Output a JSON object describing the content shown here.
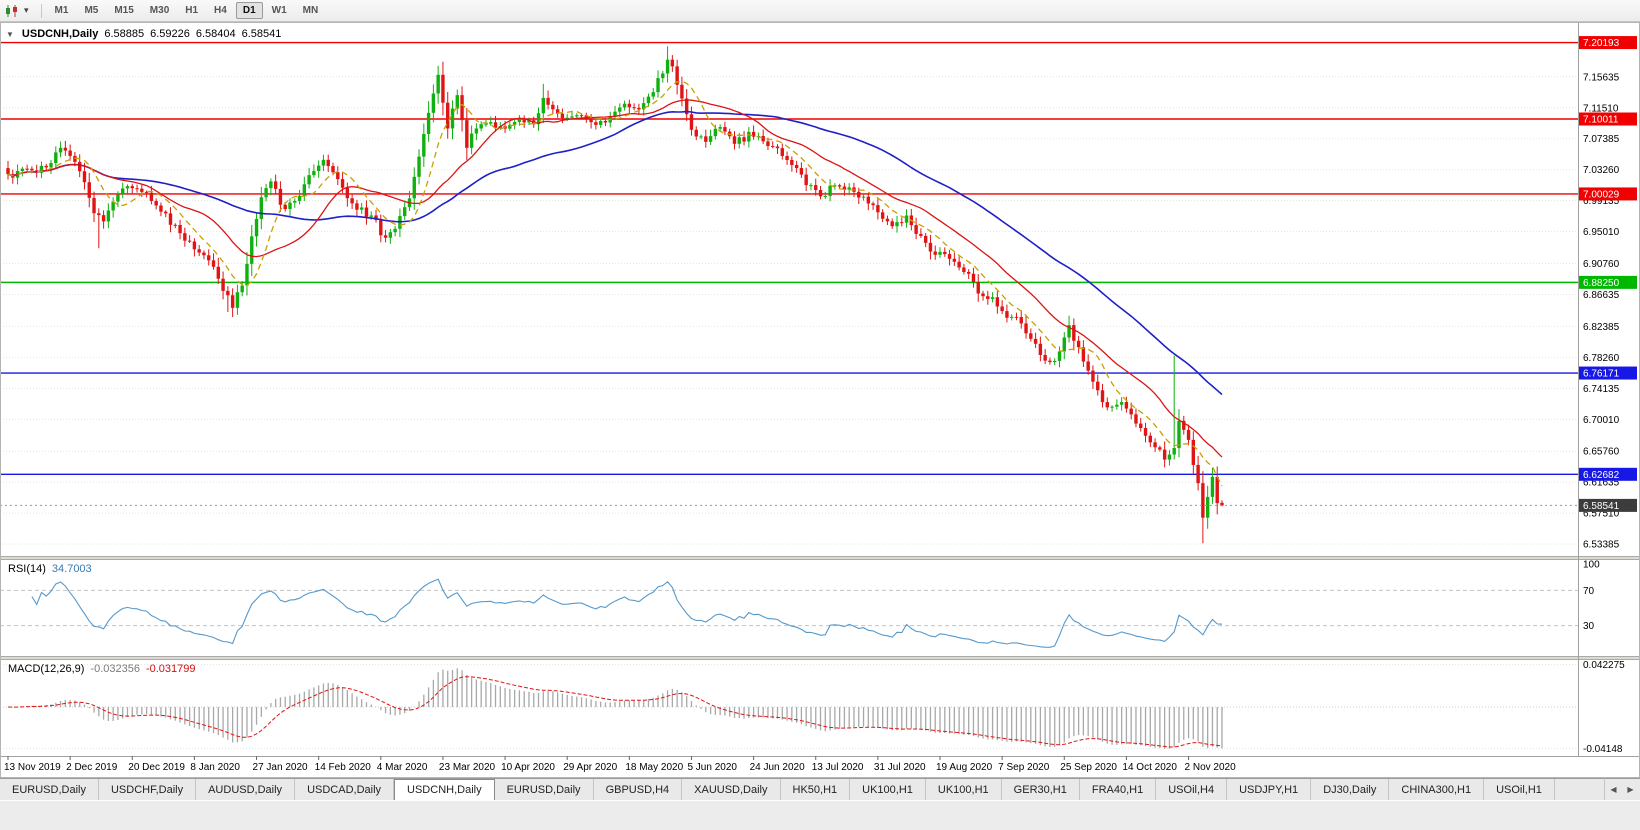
{
  "colors": {
    "up": "#10b010",
    "down": "#e01414",
    "ma_fast": "#c8a000",
    "ma_mid": "#dc1414",
    "ma_slow": "#2020c8",
    "rsi_line": "#5599cc",
    "macd_hist": "#a8a8a8",
    "macd_signal": "#e01414",
    "grid": "#e4e4e4",
    "level_dash": "#c4c4c4",
    "hline_red": "#f00000",
    "hline_green": "#00b800",
    "hline_blue": "#1818e6",
    "current_price_badge": "#3c3c3c",
    "axis_text": "#000000",
    "chart_bg": "#ffffff"
  },
  "icons": {
    "chart_type": "candlestick-chart-icon",
    "caret_down": "▾",
    "one_click_caret": "▼",
    "tab_scroll_left": "◀",
    "tab_scroll_right": "▶"
  },
  "toolbar": {
    "timeframes": [
      "M1",
      "M5",
      "M15",
      "M30",
      "H1",
      "H4",
      "D1",
      "W1",
      "MN"
    ],
    "active_timeframe": "D1"
  },
  "chart": {
    "symbol_title": "USDCNH,Daily",
    "ohlc": {
      "open": "6.58885",
      "high": "6.59226",
      "low": "6.58404",
      "close": "6.58541"
    },
    "price_axis_labels": [
      "7.15635",
      "7.11510",
      "7.07385",
      "7.03260",
      "6.99135",
      "6.95010",
      "6.90760",
      "6.86635",
      "6.82385",
      "6.78260",
      "6.74135",
      "6.70010",
      "6.65760",
      "6.61635",
      "6.57510",
      "6.53385"
    ],
    "hlines": [
      {
        "label": "7.20193",
        "value": 7.20193,
        "color": "red"
      },
      {
        "label": "7.10011",
        "value": 7.10011,
        "color": "red"
      },
      {
        "label": "7.00029",
        "value": 7.00029,
        "color": "red"
      },
      {
        "label": "6.88250",
        "value": 6.8825,
        "color": "green"
      },
      {
        "label": "6.76171",
        "value": 6.76171,
        "color": "blue"
      },
      {
        "label": "6.62682",
        "value": 6.62682,
        "color": "blue"
      }
    ],
    "current_price": {
      "label": "6.58541",
      "value": 6.58541
    },
    "dates": [
      "13 Nov 2019",
      "2 Dec 2019",
      "20 Dec 2019",
      "8 Jan 2020",
      "27 Jan 2020",
      "14 Feb 2020",
      "4 Mar 2020",
      "23 Mar 2020",
      "10 Apr 2020",
      "29 Apr 2020",
      "18 May 2020",
      "5 Jun 2020",
      "24 Jun 2020",
      "13 Jul 2020",
      "31 Jul 2020",
      "19 Aug 2020",
      "7 Sep 2020",
      "25 Sep 2020",
      "14 Oct 2020",
      "2 Nov 2020"
    ]
  },
  "chart_data": {
    "type": "candlestick",
    "symbol": "USDCNH",
    "timeframe": "Daily",
    "candle_count": 255,
    "price_range": {
      "top": 7.228,
      "bottom": 6.518
    },
    "last_candle": {
      "o": 6.58885,
      "h": 6.59226,
      "l": 6.58404,
      "c": 6.58541
    },
    "close_keypoints": [
      [
        0,
        7.022
      ],
      [
        3,
        7.036
      ],
      [
        6,
        7.03
      ],
      [
        9,
        7.046
      ],
      [
        12,
        7.062
      ],
      [
        14,
        7.048
      ],
      [
        16,
        7.02
      ],
      [
        18,
        6.978
      ],
      [
        20,
        6.966
      ],
      [
        23,
        7.004
      ],
      [
        26,
        7.012
      ],
      [
        30,
        6.992
      ],
      [
        34,
        6.962
      ],
      [
        38,
        6.934
      ],
      [
        42,
        6.912
      ],
      [
        45,
        6.874
      ],
      [
        47,
        6.852
      ],
      [
        49,
        6.882
      ],
      [
        51,
        6.94
      ],
      [
        53,
        6.996
      ],
      [
        55,
        7.02
      ],
      [
        58,
        6.976
      ],
      [
        62,
        7.012
      ],
      [
        66,
        7.048
      ],
      [
        68,
        7.032
      ],
      [
        71,
        6.996
      ],
      [
        74,
        6.978
      ],
      [
        77,
        6.962
      ],
      [
        79,
        6.938
      ],
      [
        81,
        6.952
      ],
      [
        84,
        6.998
      ],
      [
        86,
        7.052
      ],
      [
        88,
        7.112
      ],
      [
        90,
        7.155
      ],
      [
        92,
        7.086
      ],
      [
        94,
        7.134
      ],
      [
        96,
        7.064
      ],
      [
        98,
        7.088
      ],
      [
        101,
        7.096
      ],
      [
        104,
        7.088
      ],
      [
        107,
        7.098
      ],
      [
        110,
        7.092
      ],
      [
        112,
        7.132
      ],
      [
        114,
        7.108
      ],
      [
        117,
        7.098
      ],
      [
        120,
        7.108
      ],
      [
        123,
        7.092
      ],
      [
        126,
        7.102
      ],
      [
        129,
        7.118
      ],
      [
        132,
        7.108
      ],
      [
        134,
        7.128
      ],
      [
        136,
        7.152
      ],
      [
        138,
        7.178
      ],
      [
        139,
        7.168
      ],
      [
        141,
        7.132
      ],
      [
        143,
        7.086
      ],
      [
        146,
        7.072
      ],
      [
        149,
        7.088
      ],
      [
        152,
        7.068
      ],
      [
        155,
        7.078
      ],
      [
        158,
        7.072
      ],
      [
        161,
        7.058
      ],
      [
        164,
        7.042
      ],
      [
        167,
        7.012
      ],
      [
        170,
        6.998
      ],
      [
        173,
        7.012
      ],
      [
        176,
        7.004
      ],
      [
        179,
        6.992
      ],
      [
        182,
        6.976
      ],
      [
        185,
        6.958
      ],
      [
        188,
        6.968
      ],
      [
        191,
        6.942
      ],
      [
        194,
        6.922
      ],
      [
        197,
        6.912
      ],
      [
        200,
        6.898
      ],
      [
        203,
        6.872
      ],
      [
        206,
        6.858
      ],
      [
        209,
        6.838
      ],
      [
        212,
        6.828
      ],
      [
        215,
        6.796
      ],
      [
        218,
        6.772
      ],
      [
        220,
        6.788
      ],
      [
        222,
        6.822
      ],
      [
        224,
        6.796
      ],
      [
        227,
        6.752
      ],
      [
        230,
        6.712
      ],
      [
        233,
        6.722
      ],
      [
        236,
        6.698
      ],
      [
        239,
        6.672
      ],
      [
        242,
        6.648
      ],
      [
        244,
        6.66
      ],
      [
        245,
        6.7
      ],
      [
        247,
        6.672
      ],
      [
        249,
        6.615
      ],
      [
        250,
        6.565
      ],
      [
        251,
        6.6
      ],
      [
        252,
        6.62
      ],
      [
        253,
        6.592
      ],
      [
        254,
        6.585
      ]
    ],
    "wick_spikes": [
      {
        "i": 12,
        "high": 7.071
      },
      {
        "i": 19,
        "low": 6.928
      },
      {
        "i": 46,
        "low": 6.843
      },
      {
        "i": 90,
        "high": 7.163
      },
      {
        "i": 112,
        "high": 7.147
      },
      {
        "i": 138,
        "high": 7.197
      },
      {
        "i": 222,
        "high": 6.838
      },
      {
        "i": 244,
        "high": 6.785
      },
      {
        "i": 250,
        "low": 6.535
      }
    ]
  },
  "rsi": {
    "label": "RSI(14)",
    "value": "34.7003",
    "period": 14,
    "levels": [
      70,
      30
    ],
    "axis_labels": [
      {
        "text": "100",
        "value": 100
      },
      {
        "text": "70",
        "value": 70
      },
      {
        "text": "30",
        "value": 30
      }
    ]
  },
  "macd": {
    "label": "MACD(12,26,9)",
    "value_main": "-0.032356",
    "value_signal": "-0.031799",
    "fast": 12,
    "slow": 26,
    "signal": 9,
    "axis_labels": [
      {
        "text": "0.042275",
        "value": 0.042275
      },
      {
        "text": "-0.04148",
        "value": -0.04148
      }
    ]
  },
  "tabs": {
    "items": [
      "EURUSD,Daily",
      "USDCHF,Daily",
      "AUDUSD,Daily",
      "USDCAD,Daily",
      "USDCNH,Daily",
      "EURUSD,Daily",
      "GBPUSD,H4",
      "XAUUSD,Daily",
      "HK50,H1",
      "UK100,H1",
      "UK100,H1",
      "GER30,H1",
      "FRA40,H1",
      "USOil,H4",
      "USDJPY,H1",
      "DJ30,Daily",
      "CHINA300,H1",
      "USOil,H1"
    ],
    "active_index": 4
  },
  "render_hints": {
    "seed": 20201113,
    "noise": 0.0052,
    "moving_averages": [
      {
        "period": 8,
        "color_key": "ma_fast",
        "dashed": true
      },
      {
        "period": 20,
        "color_key": "ma_mid",
        "dashed": false
      },
      {
        "period": 50,
        "color_key": "ma_slow",
        "dashed": false
      }
    ]
  }
}
